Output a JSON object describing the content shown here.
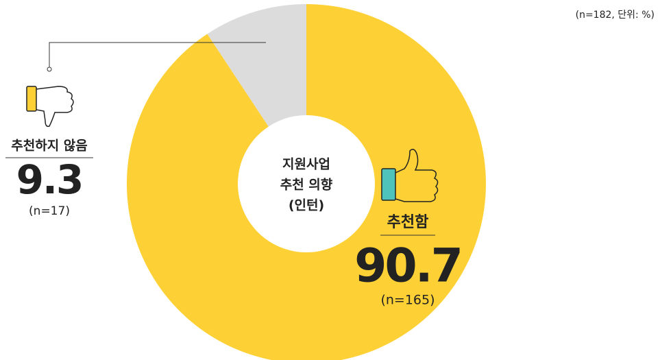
{
  "chart_data": {
    "type": "pie",
    "donut": true,
    "note": "(n=182, 단위: %)",
    "center_label": [
      "지원사업",
      "추천 의향",
      "(인턴)"
    ],
    "categories": [
      "추천함",
      "추천하지 않음"
    ],
    "values": [
      90.7,
      9.3
    ],
    "sample_labels": [
      "(n=165)",
      "(n=17)"
    ],
    "colors": [
      "#fdd135",
      "#dcdcdc"
    ]
  }
}
